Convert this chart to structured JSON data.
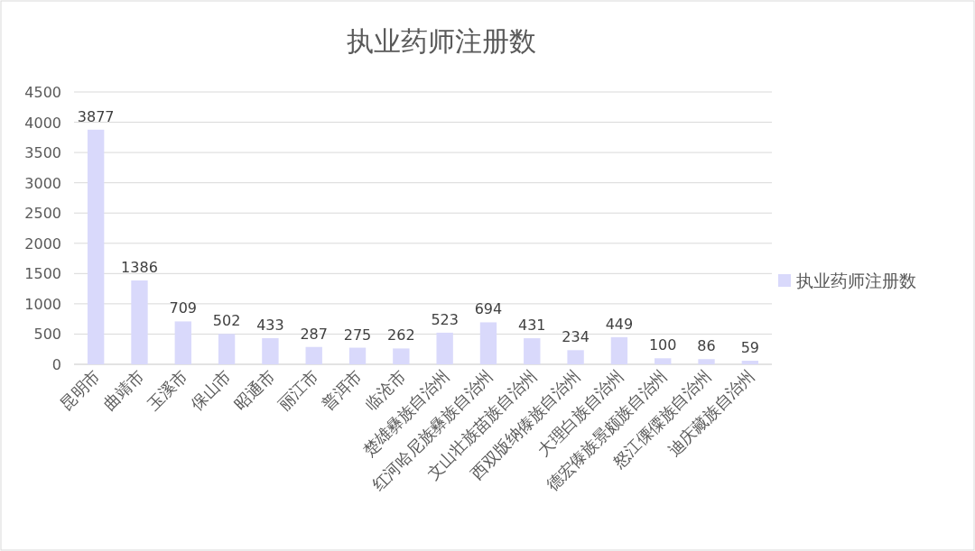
{
  "chart_data": {
    "type": "bar",
    "title": "执业药师注册数",
    "categories": [
      "昆明市",
      "曲靖市",
      "玉溪市",
      "保山市",
      "昭通市",
      "丽江市",
      "普洱市",
      "临沧市",
      "楚雄彝族自治州",
      "红河哈尼族彝族自治州",
      "文山壮族苗族自治州",
      "西双版纳傣族自治州",
      "大理白族自治州",
      "德宏傣族景颇族自治州",
      "怒江傈僳族自治州",
      "迪庆藏族自治州"
    ],
    "series": [
      {
        "name": "执业药师注册数",
        "color": "#d9d9fb",
        "values": [
          3877,
          1386,
          709,
          502,
          433,
          287,
          275,
          262,
          523,
          694,
          431,
          234,
          449,
          100,
          86,
          59
        ]
      }
    ],
    "ylim": [
      0,
      4500
    ],
    "yticks": [
      0,
      500,
      1000,
      1500,
      2000,
      2500,
      3000,
      3500,
      4000,
      4500
    ],
    "grid": "y",
    "legend": "right",
    "data_labels": true
  }
}
